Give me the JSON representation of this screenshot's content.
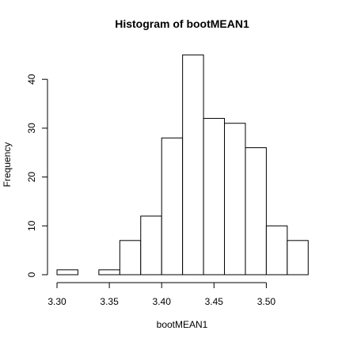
{
  "chart_data": {
    "type": "bar",
    "title": "Histogram of bootMEAN1",
    "xlabel": "bootMEAN1",
    "ylabel": "Frequency",
    "bins": [
      {
        "start": 3.3,
        "end": 3.32,
        "count": 1
      },
      {
        "start": 3.32,
        "end": 3.34,
        "count": 0
      },
      {
        "start": 3.34,
        "end": 3.36,
        "count": 1
      },
      {
        "start": 3.36,
        "end": 3.38,
        "count": 7
      },
      {
        "start": 3.38,
        "end": 3.4,
        "count": 12
      },
      {
        "start": 3.4,
        "end": 3.42,
        "count": 28
      },
      {
        "start": 3.42,
        "end": 3.44,
        "count": 45
      },
      {
        "start": 3.44,
        "end": 3.46,
        "count": 32
      },
      {
        "start": 3.46,
        "end": 3.48,
        "count": 31
      },
      {
        "start": 3.48,
        "end": 3.5,
        "count": 26
      },
      {
        "start": 3.5,
        "end": 3.52,
        "count": 10
      },
      {
        "start": 3.52,
        "end": 3.54,
        "count": 7
      }
    ],
    "xlim": [
      3.3,
      3.54
    ],
    "ylim": [
      0,
      45
    ],
    "x_ticks": [
      3.3,
      3.35,
      3.4,
      3.45,
      3.5
    ],
    "x_tick_labels": [
      "3.30",
      "3.35",
      "3.40",
      "3.45",
      "3.50"
    ],
    "y_ticks": [
      0,
      10,
      20,
      30,
      40
    ],
    "y_tick_labels": [
      "0",
      "10",
      "20",
      "30",
      "40"
    ],
    "grid": false,
    "bar_fill": "#ffffff",
    "bar_stroke": "#000000"
  }
}
